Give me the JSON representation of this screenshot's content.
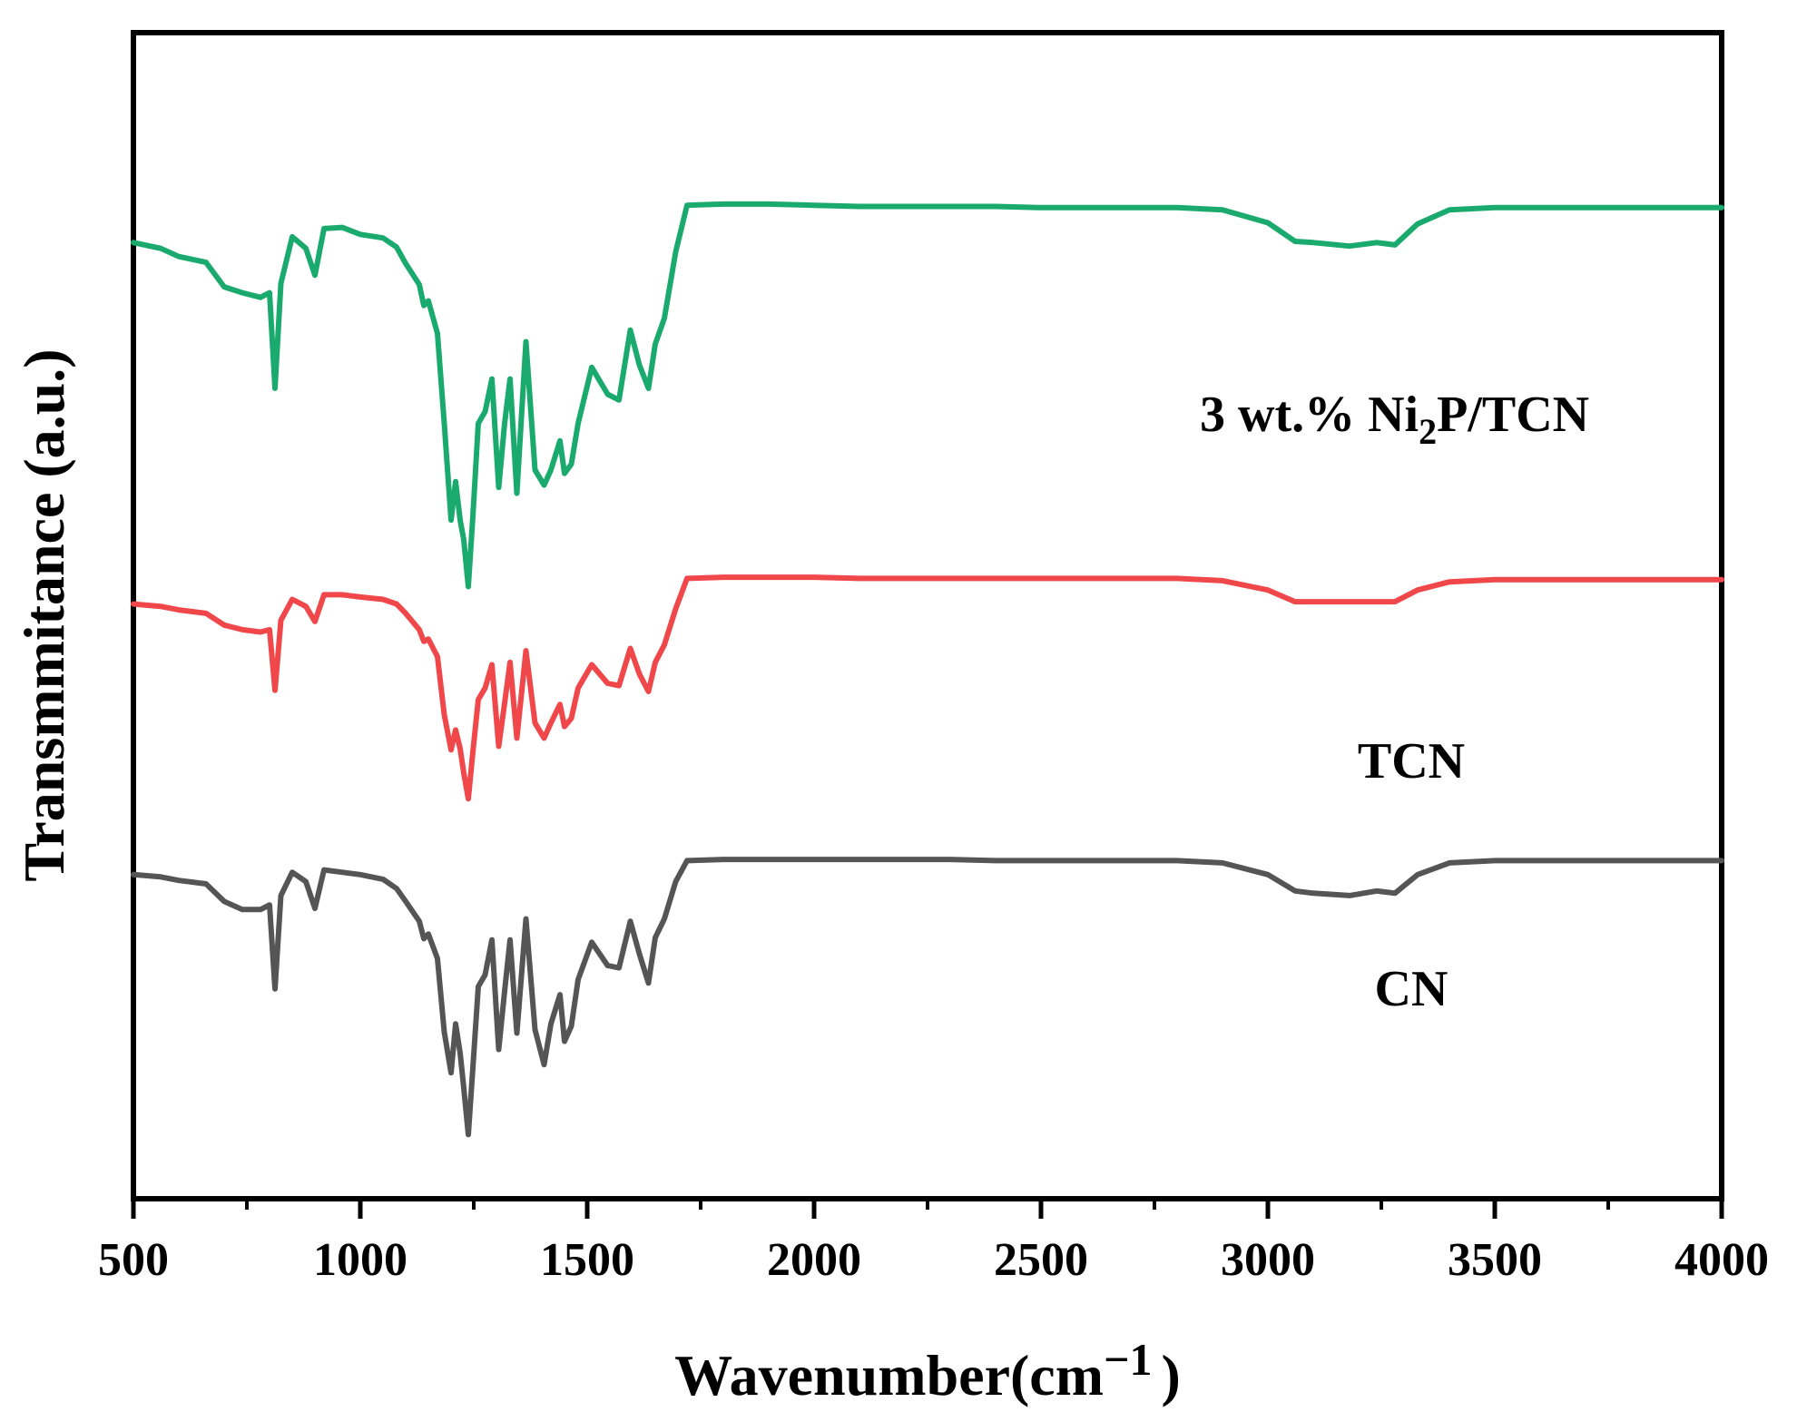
{
  "chart_data": {
    "type": "line",
    "title": "",
    "xlabel": "Wavenumber",
    "xlabel_unit_open": "(cm",
    "xlabel_unit_exp": "−1",
    "xlabel_unit_close": ")",
    "ylabel": "Transmmitance (a.u.)",
    "xlim": [
      500,
      4000
    ],
    "ylim": [
      0,
      100
    ],
    "x_ticks": [
      500,
      1000,
      1500,
      2000,
      2500,
      3000,
      3500,
      4000
    ],
    "y_ticks_shown": false,
    "grid": false,
    "series": [
      {
        "name": "3 wt.% Ni2P/TCN",
        "label_parts": {
          "before": "3 wt.% Ni",
          "sub": "2",
          "after": "P/TCN"
        },
        "color": "#1aaa6e",
        "x": [
          500,
          560,
          600,
          660,
          700,
          740,
          780,
          800,
          812,
          825,
          850,
          880,
          900,
          920,
          960,
          1000,
          1050,
          1080,
          1100,
          1130,
          1140,
          1150,
          1170,
          1185,
          1200,
          1210,
          1220,
          1228,
          1238,
          1248,
          1260,
          1275,
          1290,
          1305,
          1318,
          1330,
          1345,
          1365,
          1385,
          1405,
          1420,
          1440,
          1450,
          1465,
          1480,
          1510,
          1545,
          1570,
          1595,
          1615,
          1635,
          1650,
          1670,
          1695,
          1720,
          1800,
          1900,
          2000,
          2100,
          2200,
          2300,
          2400,
          2500,
          2600,
          2700,
          2800,
          2900,
          3000,
          3060,
          3100,
          3180,
          3240,
          3280,
          3330,
          3400,
          3500,
          3600,
          3700,
          3800,
          3900,
          4000
        ],
        "y": [
          82,
          81.5,
          80.8,
          80.3,
          78.2,
          77.7,
          77.3,
          77.7,
          69.5,
          78.5,
          82.5,
          81.5,
          79.2,
          83.2,
          83.3,
          82.7,
          82.4,
          81.6,
          80.2,
          78.4,
          76.6,
          77.0,
          74.2,
          66.5,
          58.2,
          61.5,
          58.2,
          56.5,
          52.5,
          58.5,
          66.5,
          67.5,
          70.3,
          61.0,
          66.5,
          70.3,
          60.5,
          73.5,
          62.5,
          61.2,
          62.5,
          65.0,
          62.2,
          63.0,
          66.5,
          71.3,
          69.0,
          68.5,
          74.5,
          71.5,
          69.5,
          73.3,
          75.5,
          81.2,
          85.2,
          85.3,
          85.3,
          85.2,
          85.1,
          85.1,
          85.1,
          85.1,
          85.0,
          85.0,
          85.0,
          85.0,
          84.8,
          83.7,
          82.1,
          82.0,
          81.7,
          82.0,
          81.8,
          83.6,
          84.8,
          85.0,
          85.0,
          85.0,
          85.0,
          85.0,
          85.0
        ]
      },
      {
        "name": "TCN",
        "color": "#f0474a",
        "x": [
          500,
          560,
          600,
          660,
          700,
          740,
          780,
          800,
          812,
          825,
          850,
          880,
          900,
          920,
          960,
          1000,
          1050,
          1080,
          1100,
          1130,
          1140,
          1150,
          1170,
          1185,
          1200,
          1210,
          1220,
          1228,
          1238,
          1248,
          1260,
          1275,
          1290,
          1305,
          1318,
          1330,
          1345,
          1365,
          1385,
          1405,
          1420,
          1440,
          1450,
          1465,
          1480,
          1510,
          1545,
          1570,
          1595,
          1615,
          1635,
          1650,
          1670,
          1695,
          1720,
          1800,
          1900,
          2000,
          2100,
          2200,
          2300,
          2400,
          2500,
          2600,
          2700,
          2800,
          2900,
          3000,
          3060,
          3100,
          3180,
          3240,
          3280,
          3330,
          3400,
          3500,
          3600,
          3700,
          3800,
          3900,
          4000
        ],
        "y": [
          51.0,
          50.8,
          50.5,
          50.2,
          49.2,
          48.8,
          48.6,
          48.8,
          43.6,
          49.6,
          51.4,
          50.8,
          49.5,
          51.8,
          51.8,
          51.6,
          51.4,
          51.0,
          50.2,
          48.8,
          47.8,
          48.0,
          46.5,
          41.5,
          38.5,
          40.2,
          38.6,
          36.5,
          34.3,
          38.3,
          42.8,
          43.8,
          45.8,
          38.8,
          42.5,
          46.0,
          39.5,
          47.0,
          40.8,
          39.5,
          40.8,
          42.4,
          40.5,
          41.2,
          43.8,
          45.8,
          44.2,
          44.0,
          47.2,
          45.0,
          43.5,
          46.0,
          47.5,
          50.6,
          53.2,
          53.3,
          53.3,
          53.3,
          53.2,
          53.2,
          53.2,
          53.2,
          53.2,
          53.2,
          53.2,
          53.2,
          53.0,
          52.2,
          51.2,
          51.2,
          51.2,
          51.2,
          51.2,
          52.2,
          52.9,
          53.1,
          53.1,
          53.1,
          53.1,
          53.1,
          53.1
        ]
      },
      {
        "name": "CN",
        "color": "#555555",
        "x": [
          500,
          560,
          600,
          660,
          700,
          740,
          780,
          800,
          812,
          825,
          850,
          880,
          900,
          920,
          960,
          1000,
          1050,
          1080,
          1100,
          1130,
          1140,
          1150,
          1170,
          1185,
          1200,
          1210,
          1220,
          1228,
          1238,
          1248,
          1260,
          1275,
          1290,
          1305,
          1318,
          1330,
          1345,
          1365,
          1385,
          1405,
          1420,
          1440,
          1450,
          1465,
          1480,
          1510,
          1545,
          1570,
          1595,
          1615,
          1635,
          1650,
          1670,
          1695,
          1720,
          1800,
          1900,
          2000,
          2100,
          2200,
          2300,
          2400,
          2500,
          2600,
          2700,
          2800,
          2900,
          3000,
          3060,
          3100,
          3180,
          3240,
          3280,
          3330,
          3400,
          3500,
          3600,
          3700,
          3800,
          3900,
          4000
        ],
        "y": [
          27.8,
          27.6,
          27.3,
          27.0,
          25.5,
          24.8,
          24.8,
          25.2,
          18.0,
          26.0,
          28.0,
          27.2,
          24.9,
          28.2,
          28.0,
          27.8,
          27.4,
          26.6,
          25.5,
          23.8,
          22.3,
          22.7,
          20.6,
          14.3,
          10.8,
          15.0,
          12.5,
          9.5,
          5.5,
          11.2,
          18.2,
          19.2,
          22.2,
          12.8,
          17.8,
          22.2,
          14.2,
          24.0,
          14.5,
          11.5,
          15.0,
          17.5,
          13.5,
          14.8,
          18.8,
          22.0,
          20.0,
          19.8,
          23.8,
          21.0,
          18.5,
          22.4,
          24.0,
          27.2,
          29.0,
          29.1,
          29.1,
          29.1,
          29.1,
          29.1,
          29.1,
          29.0,
          29.0,
          29.0,
          29.0,
          29.0,
          28.8,
          27.8,
          26.4,
          26.2,
          26.0,
          26.4,
          26.2,
          27.8,
          28.8,
          29.0,
          29.0,
          29.0,
          29.0,
          29.0,
          29.0
        ]
      }
    ]
  }
}
